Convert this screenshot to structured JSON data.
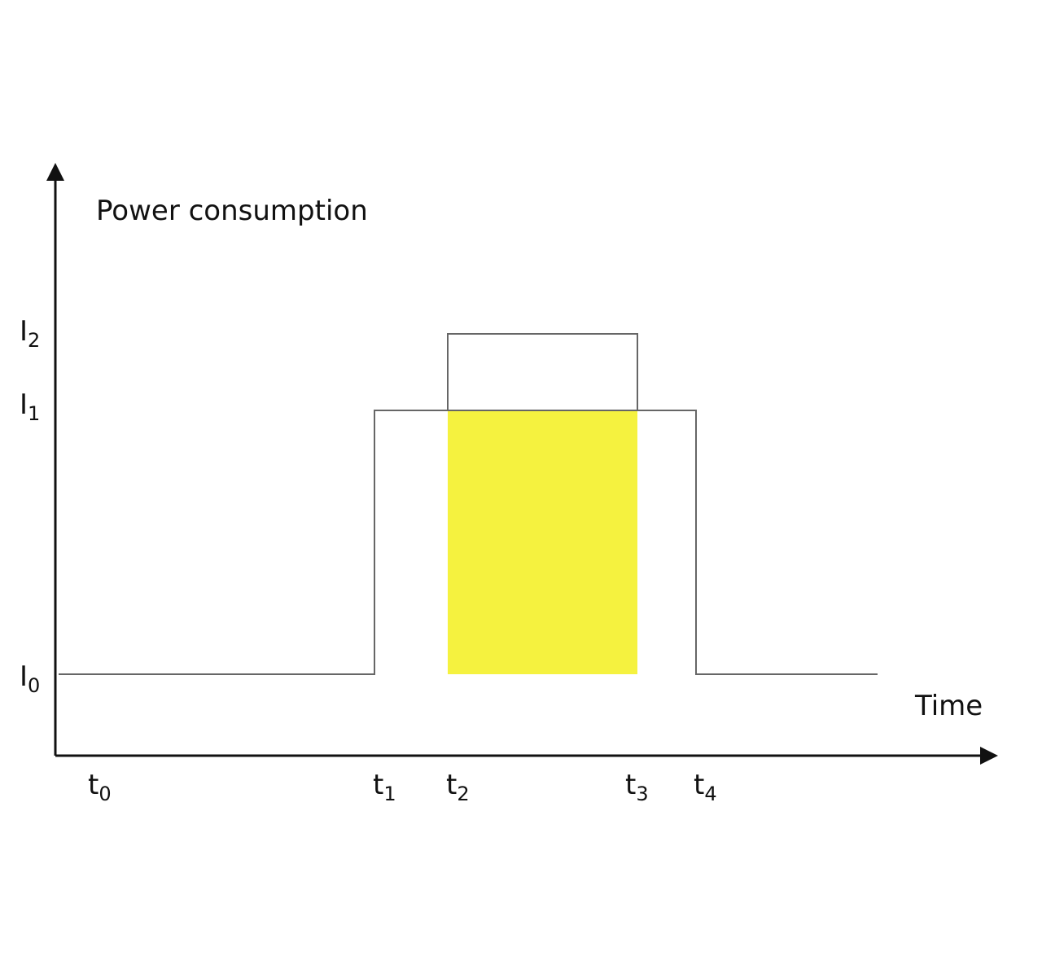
{
  "y_axis_label": "Power consumption",
  "x_axis_label": "Time",
  "levels": [
    {
      "base": "I",
      "sub": "0"
    },
    {
      "base": "I",
      "sub": "1"
    },
    {
      "base": "I",
      "sub": "2"
    }
  ],
  "times": [
    {
      "base": "t",
      "sub": "0"
    },
    {
      "base": "t",
      "sub": "1"
    },
    {
      "base": "t",
      "sub": "2"
    },
    {
      "base": "t",
      "sub": "3"
    },
    {
      "base": "t",
      "sub": "4"
    }
  ]
}
